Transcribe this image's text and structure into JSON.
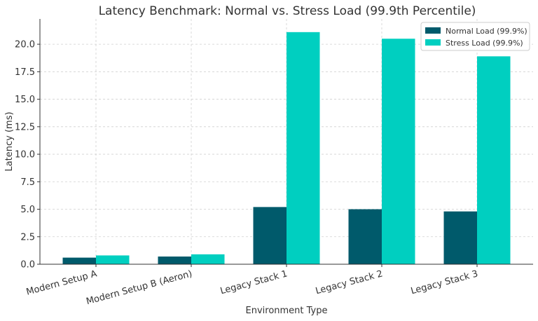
{
  "chart_data": {
    "type": "bar",
    "title": "Latency Benchmark: Normal vs. Stress Load (99.9th Percentile)",
    "xlabel": "Environment Type",
    "ylabel": "Latency (ms)",
    "categories": [
      "Modern Setup A",
      "Modern Setup B (Aeron)",
      "Legacy Stack 1",
      "Legacy Stack 2",
      "Legacy Stack 3"
    ],
    "series": [
      {
        "name": "Normal Load (99.9%)",
        "color": "#005a6b",
        "values": [
          0.6,
          0.7,
          5.2,
          5.0,
          4.8
        ]
      },
      {
        "name": "Stress Load (99.9%)",
        "color": "#00cfc0",
        "values": [
          0.8,
          0.9,
          21.1,
          20.5,
          18.9
        ]
      }
    ],
    "ylim": [
      0,
      22.3
    ],
    "yticks": [
      "0.0",
      "2.5",
      "5.0",
      "7.5",
      "10.0",
      "12.5",
      "15.0",
      "17.5",
      "20.0"
    ],
    "grid": true,
    "legend_position": "top-right"
  }
}
